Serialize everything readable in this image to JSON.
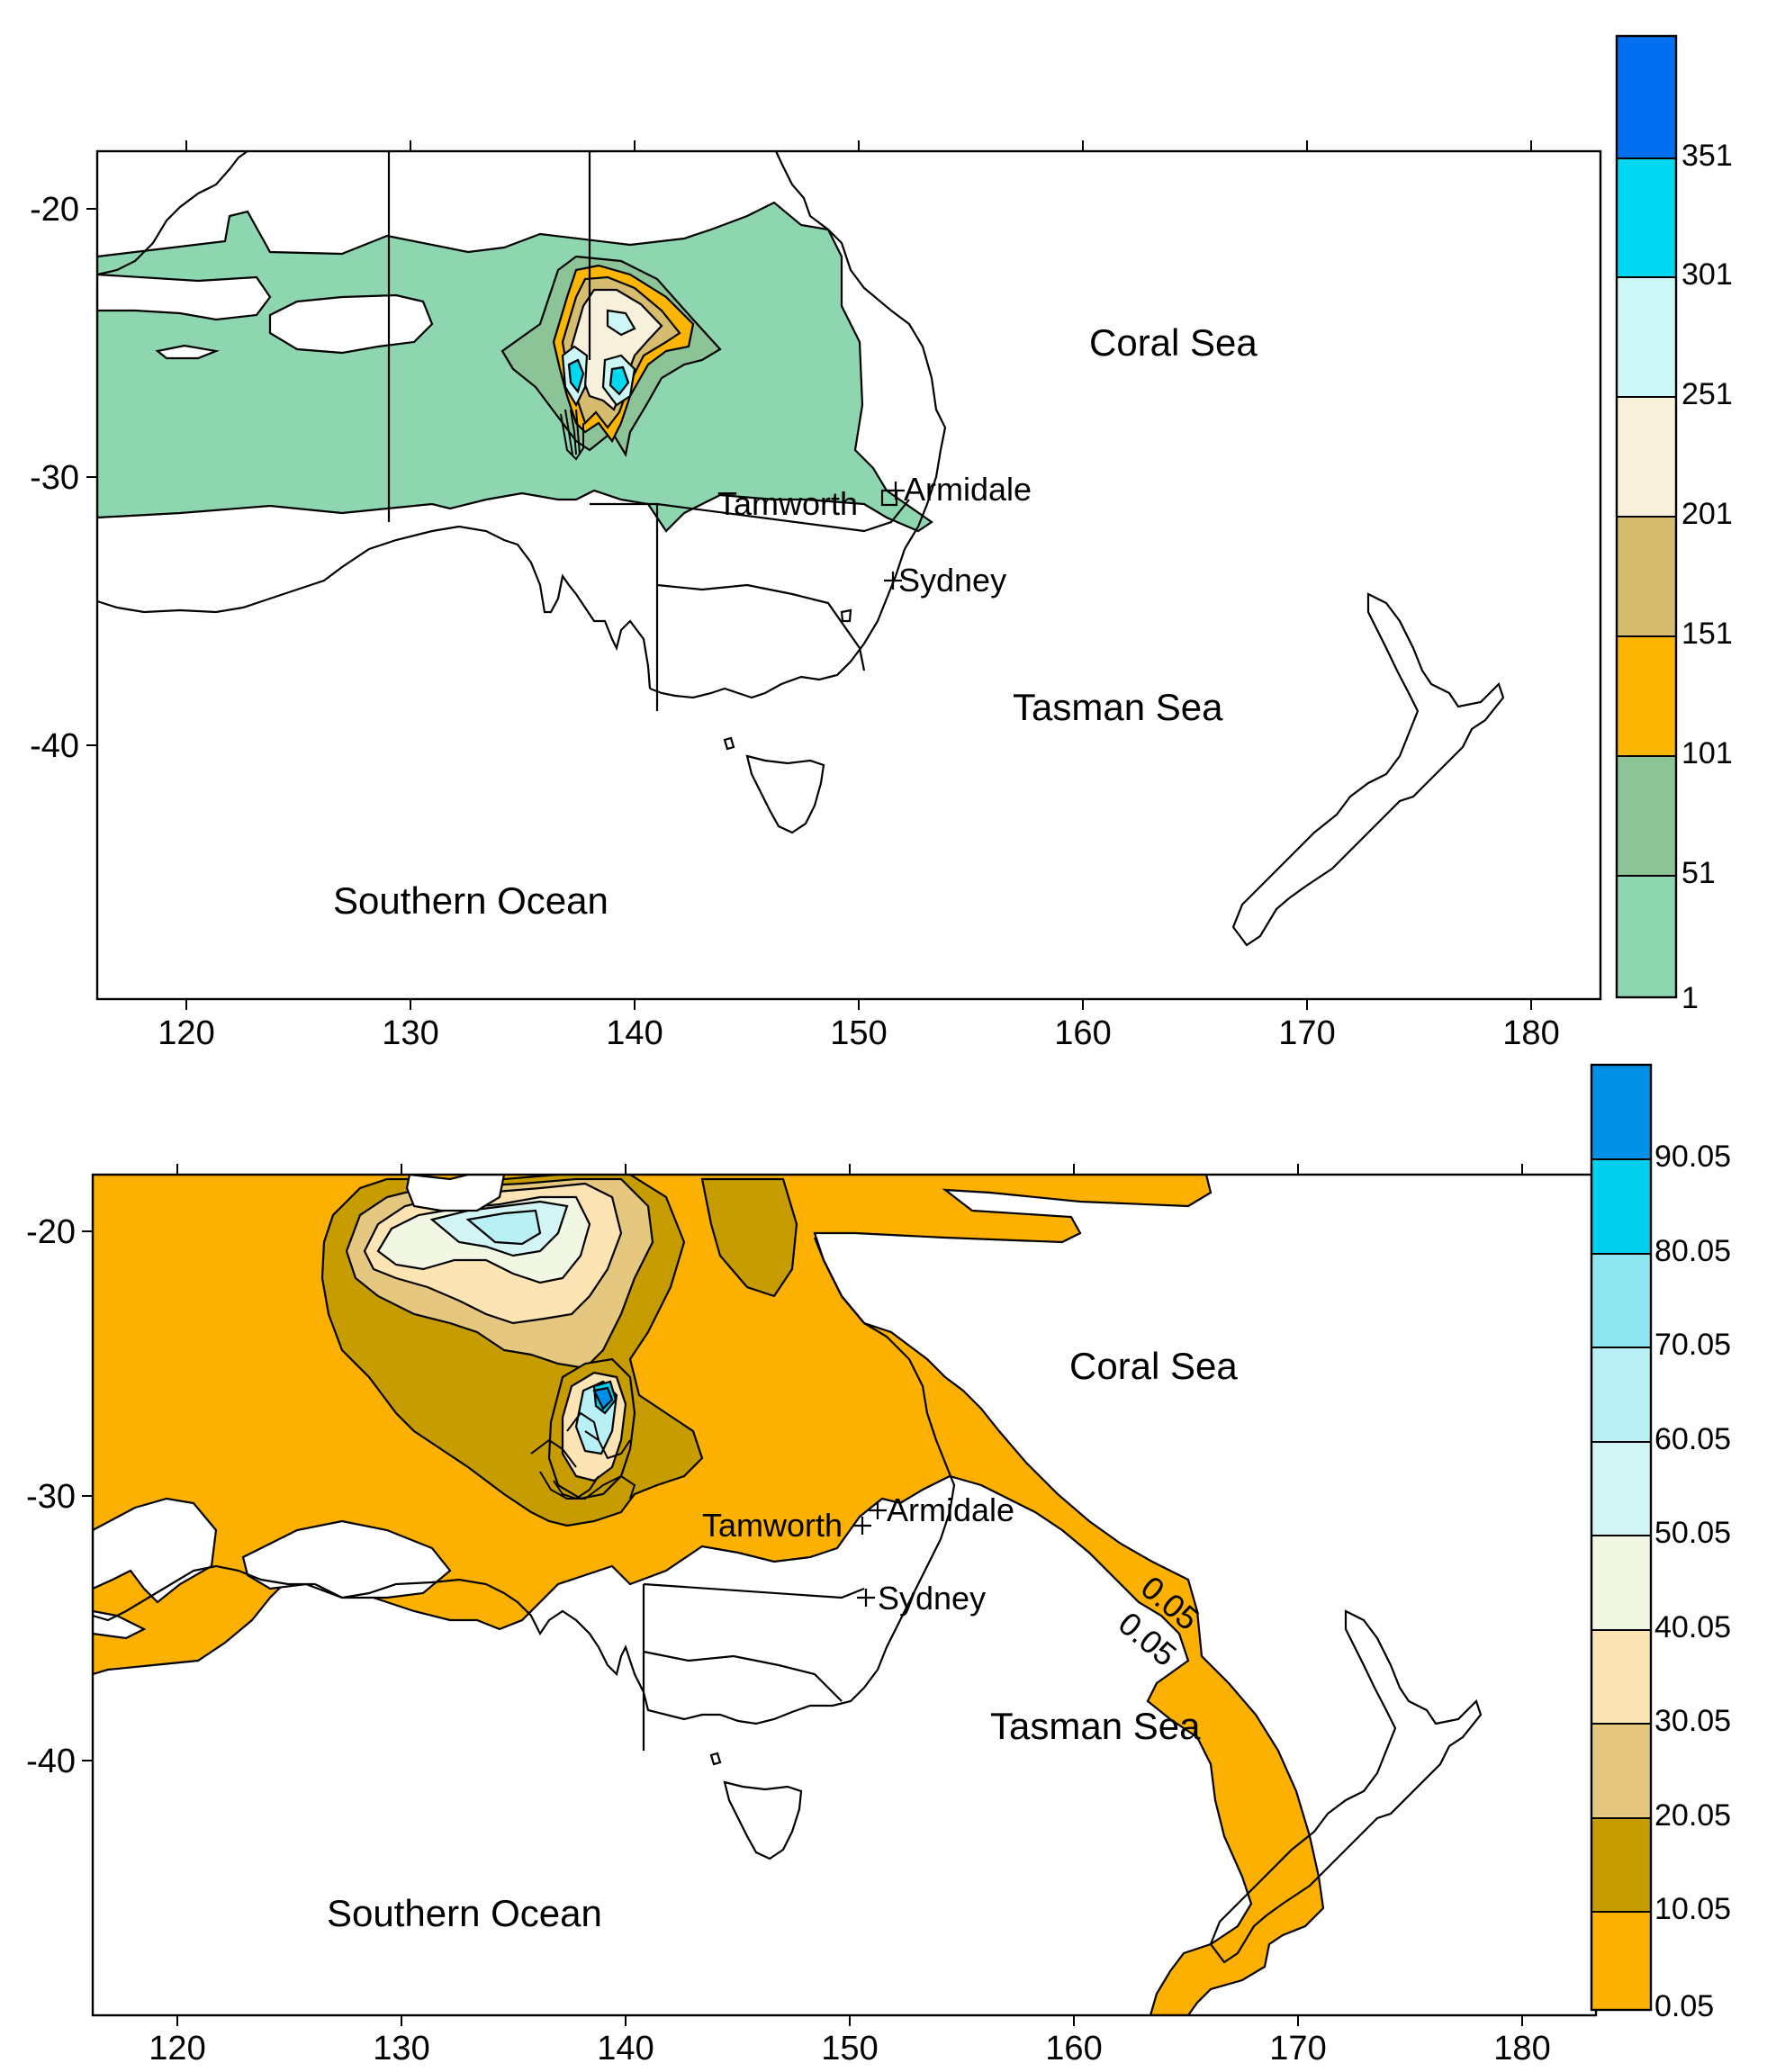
{
  "colors": {
    "c1": "#8ed6b0",
    "c51": "#8cc498",
    "c101": "#fcb500",
    "c151": "#d6bc6e",
    "c201": "#f7f0da",
    "c251": "#cdf6f7",
    "c301": "#00d7f0",
    "c351": "#0070f0",
    "b005": "#fcb000",
    "b1005": "#c69c00",
    "b2005": "#e6c77f",
    "b3005": "#fde4b4",
    "b4005": "#f2f7e4",
    "b5005": "#d3f4f5",
    "b6005": "#b8f0f5",
    "b7005": "#8ee6f1",
    "b8005": "#00cfee",
    "b9005": "#0090e8"
  },
  "map_top": {
    "x_ticks": [
      "120",
      "130",
      "140",
      "150",
      "160",
      "170",
      "180"
    ],
    "y_ticks": [
      "-20",
      "-30",
      "-40"
    ],
    "sea_labels": {
      "coral": "Coral Sea",
      "tasman": "Tasman Sea",
      "southern": "Southern Ocean"
    },
    "cities": {
      "tamworth": "Tamworth",
      "armidale": "Armidale",
      "sydney": "Sydney"
    },
    "colorbar_labels": [
      "351",
      "301",
      "251",
      "201",
      "151",
      "101",
      "51",
      "1"
    ]
  },
  "map_bottom": {
    "x_ticks": [
      "120",
      "130",
      "140",
      "150",
      "160",
      "170",
      "180"
    ],
    "y_ticks": [
      "-20",
      "-30",
      "-40"
    ],
    "sea_labels": {
      "coral": "Coral Sea",
      "tasman": "Tasman Sea",
      "southern": "Southern Ocean"
    },
    "cities": {
      "tamworth": "Tamworth",
      "armidale": "Armidale",
      "sydney": "Sydney"
    },
    "contour_labels": [
      "0.05",
      "0.05"
    ],
    "colorbar_labels": [
      "90.05",
      "80.05",
      "70.05",
      "60.05",
      "50.05",
      "40.05",
      "30.05",
      "20.05",
      "10.05",
      "0.05"
    ]
  }
}
